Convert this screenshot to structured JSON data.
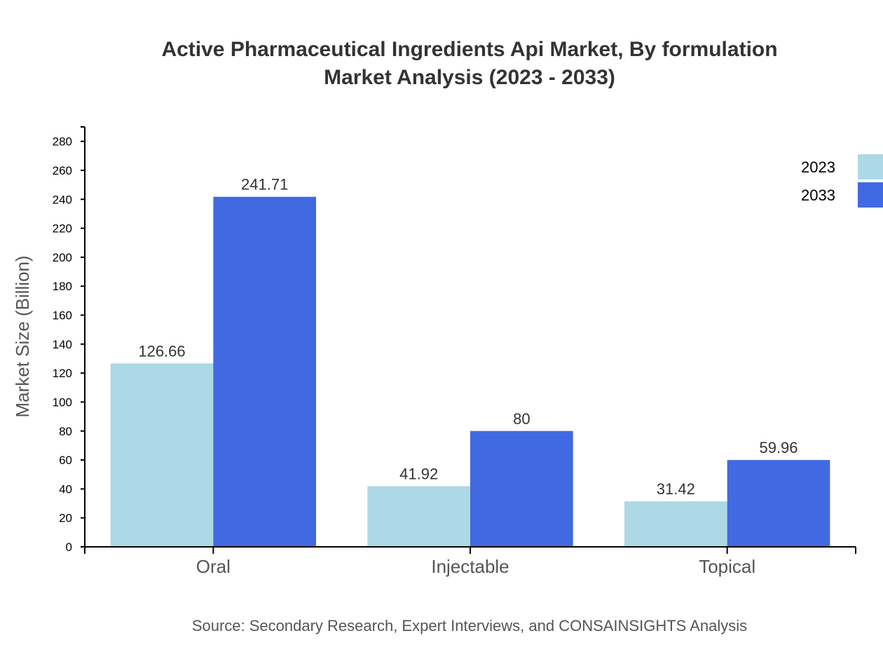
{
  "chart_data": {
    "type": "bar",
    "title": [
      "Active Pharmaceutical Ingredients Api Market, By formulation",
      "Market Analysis (2023 - 2033)"
    ],
    "xlabel": "",
    "ylabel": "Market Size (Billion)",
    "categories": [
      "Oral",
      "Injectable",
      "Topical"
    ],
    "series": [
      {
        "name": "2023",
        "values": [
          126.66,
          41.92,
          31.42
        ],
        "color": "#add8e6"
      },
      {
        "name": "2033",
        "values": [
          241.71,
          80,
          59.96
        ],
        "color": "#4169e1"
      }
    ],
    "ylim": [
      0,
      290
    ],
    "yticks": [
      0,
      20,
      40,
      60,
      80,
      100,
      120,
      140,
      160,
      180,
      200,
      220,
      240,
      260,
      280
    ],
    "grid": false,
    "legend": "top-right",
    "source": "Source: Secondary Research, Expert Interviews, and CONSAINSIGHTS Analysis"
  }
}
